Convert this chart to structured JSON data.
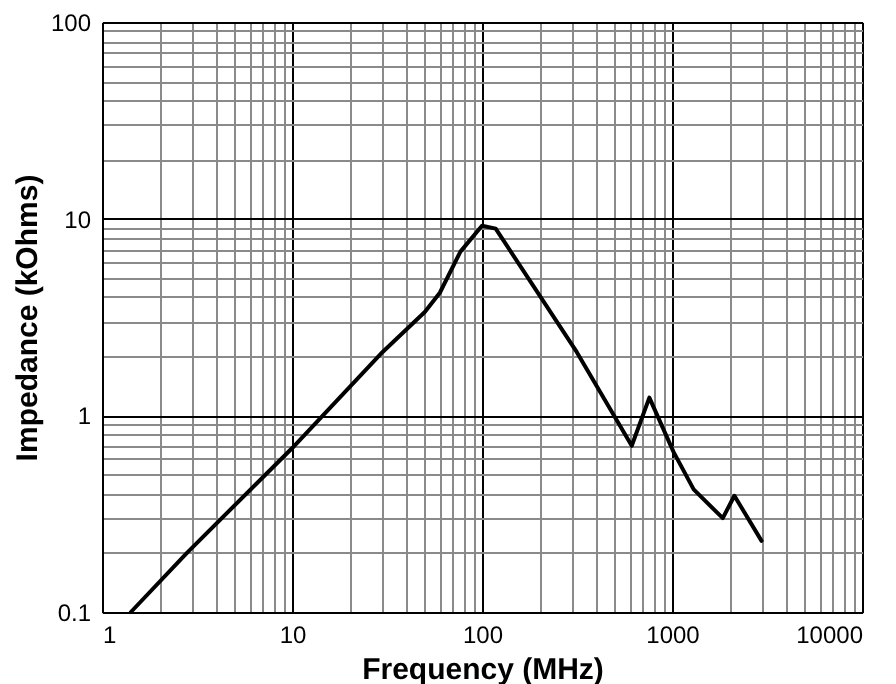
{
  "chart_data": {
    "type": "line",
    "xlabel": "Frequency (MHz)",
    "ylabel": "Impedance (kOhms)",
    "log": "xy",
    "grid": true,
    "line_style": "solid",
    "marker": "none",
    "xlim": [
      1,
      10000
    ],
    "ylim": [
      0.1,
      100
    ],
    "xticks": [
      1,
      {
        "value": 2,
        "label": null
      },
      {
        "value": 3,
        "label": null
      },
      {
        "value": 4,
        "label": null
      },
      {
        "value": 5,
        "label": null
      },
      {
        "value": 6,
        "label": null
      },
      {
        "value": 7,
        "label": null
      },
      {
        "value": 8,
        "label": null
      },
      {
        "value": 9,
        "label": null
      },
      10,
      {
        "value": 20,
        "label": null
      },
      {
        "value": 30,
        "label": null
      },
      {
        "value": 40,
        "label": null
      },
      {
        "value": 50,
        "label": null
      },
      {
        "value": 60,
        "label": null
      },
      {
        "value": 70,
        "label": null
      },
      {
        "value": 80,
        "label": null
      },
      {
        "value": 90,
        "label": null
      },
      100,
      {
        "value": 200,
        "label": null
      },
      {
        "value": 300,
        "label": null
      },
      {
        "value": 400,
        "label": null
      },
      {
        "value": 500,
        "label": null
      },
      {
        "value": 600,
        "label": null
      },
      {
        "value": 700,
        "label": null
      },
      {
        "value": 800,
        "label": null
      },
      {
        "value": 900,
        "label": null
      },
      1000,
      {
        "value": 2000,
        "label": null
      },
      {
        "value": 3000,
        "label": null
      },
      {
        "value": 4000,
        "label": null
      },
      {
        "value": 5000,
        "label": null
      },
      {
        "value": 6000,
        "label": null
      },
      {
        "value": 7000,
        "label": null
      },
      {
        "value": 8000,
        "label": null
      },
      {
        "value": 9000,
        "label": null
      },
      10000
    ],
    "yticks": [
      0.1,
      {
        "value": 0.2,
        "label": null
      },
      {
        "value": 0.3,
        "label": null
      },
      {
        "value": 0.4,
        "label": null
      },
      {
        "value": 0.5,
        "label": null
      },
      {
        "value": 0.6,
        "label": null
      },
      {
        "value": 0.7,
        "label": null
      },
      {
        "value": 0.8,
        "label": null
      },
      {
        "value": 0.9,
        "label": null
      },
      1,
      {
        "value": 2,
        "label": null
      },
      {
        "value": 3,
        "label": null
      },
      {
        "value": 4,
        "label": null
      },
      {
        "value": 5,
        "label": null
      },
      {
        "value": 6,
        "label": null
      },
      {
        "value": 7,
        "label": null
      },
      {
        "value": 8,
        "label": null
      },
      {
        "value": 9,
        "label": null
      },
      10,
      {
        "value": 20,
        "label": null
      },
      {
        "value": 30,
        "label": null
      },
      {
        "value": 40,
        "label": null
      },
      {
        "value": 50,
        "label": null
      },
      {
        "value": 60,
        "label": null
      },
      {
        "value": 70,
        "label": null
      },
      {
        "value": 80,
        "label": null
      },
      {
        "value": 90,
        "label": null
      },
      100
    ],
    "series": [
      {
        "color": "#000000",
        "x": [
          1.42,
          2.8,
          10,
          30,
          50,
          60,
          77,
          100,
          118,
          315,
          614,
          760,
          1020,
          1300,
          1850,
          2130,
          2960
        ],
        "values": [
          0.1,
          0.2,
          0.68,
          2.1,
          3.35,
          4.2,
          6.8,
          9.2,
          8.9,
          2.1,
          0.7,
          1.23,
          0.65,
          0.42,
          0.3,
          0.39,
          0.23
        ]
      }
    ]
  }
}
